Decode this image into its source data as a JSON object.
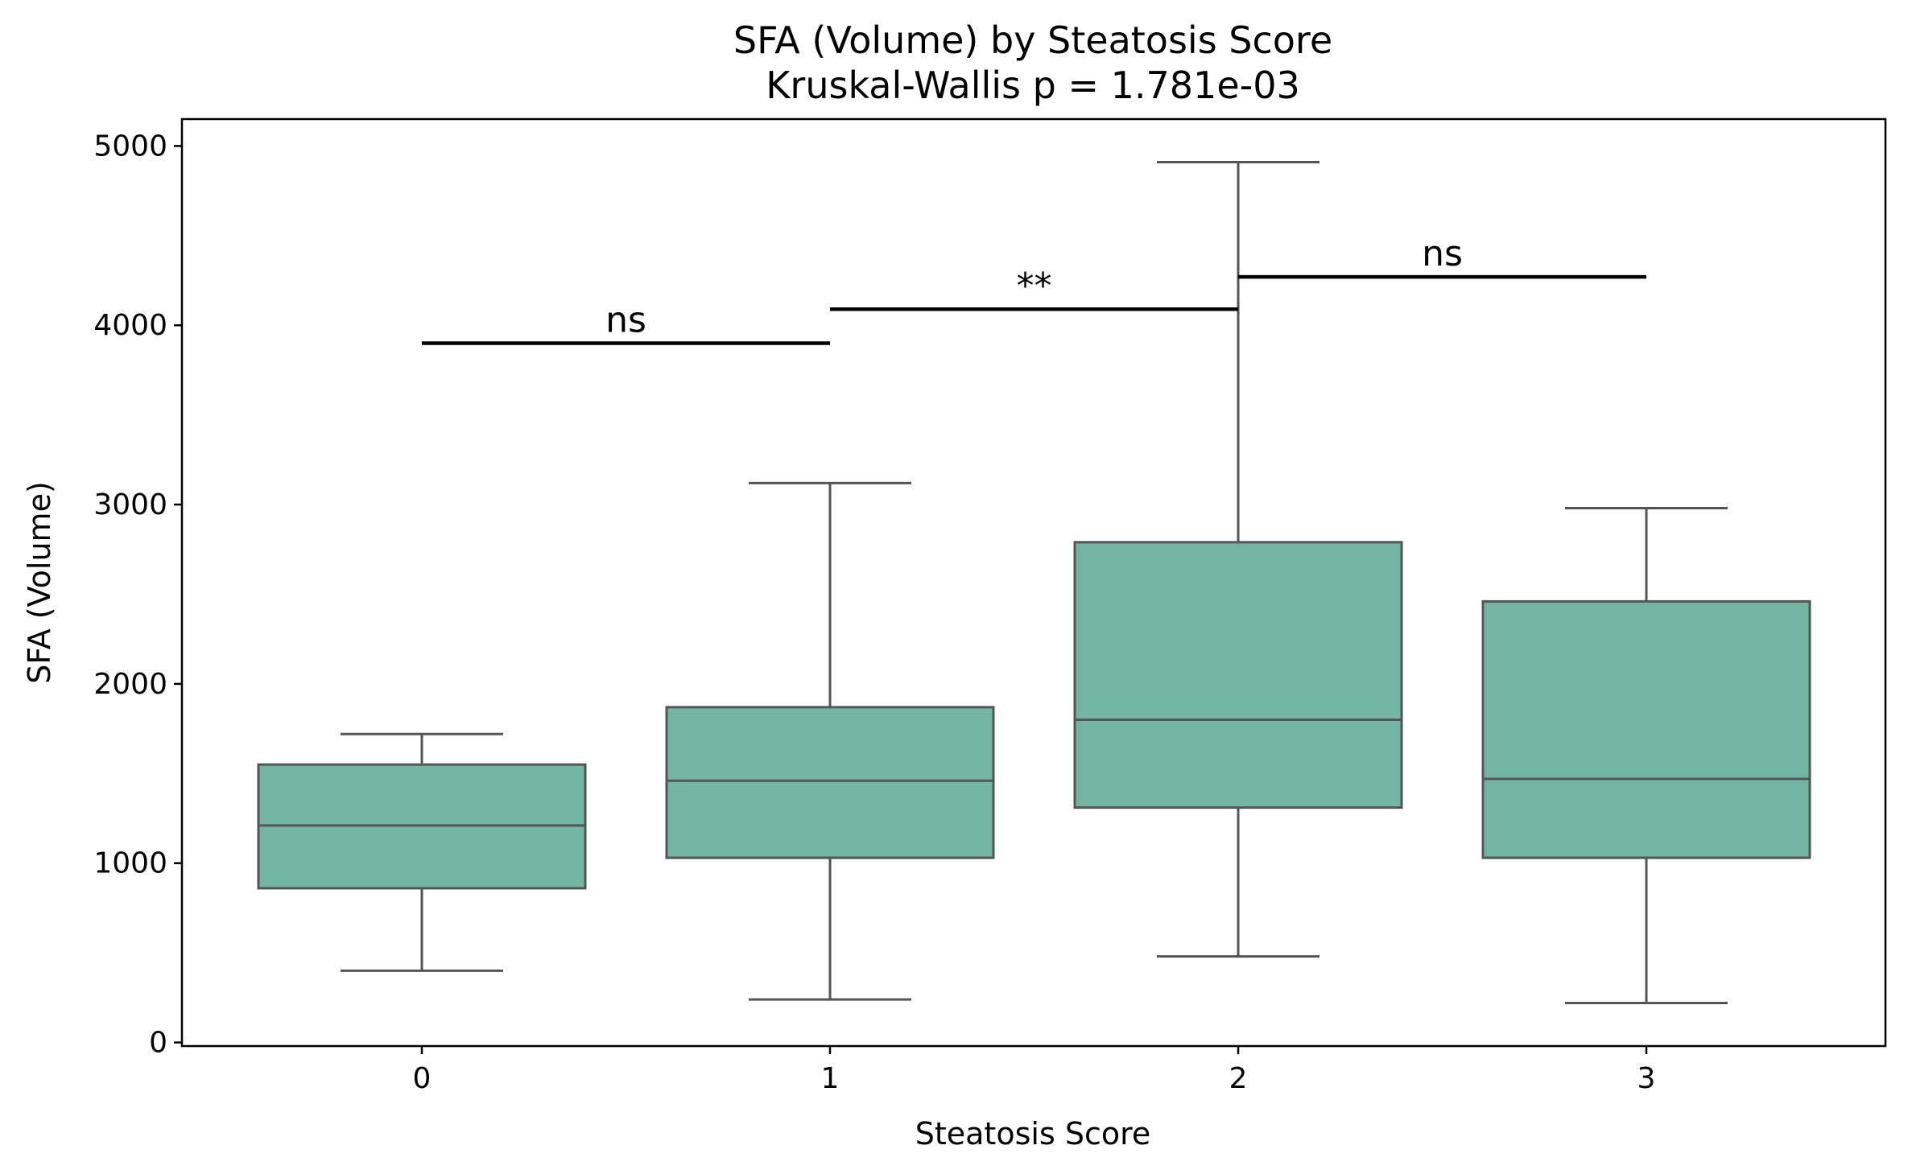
{
  "chart_data": {
    "type": "box",
    "title": "SFA (Volume) by Steatosis Score",
    "subtitle": "Kruskal-Wallis p = 1.781e-03",
    "xlabel": "Steatosis Score",
    "ylabel": "SFA (Volume)",
    "categories": [
      "0",
      "1",
      "2",
      "3"
    ],
    "ylim": [
      -20,
      5150
    ],
    "yticks": [
      0,
      1000,
      2000,
      3000,
      4000,
      5000
    ],
    "grid": false,
    "legend": "none",
    "box_color": "#73b5a2",
    "line_color": "#555555",
    "boxes": [
      {
        "category": "0",
        "whisker_low": 400,
        "q1": 860,
        "median": 1210,
        "q3": 1550,
        "whisker_high": 1720
      },
      {
        "category": "1",
        "whisker_low": 240,
        "q1": 1030,
        "median": 1460,
        "q3": 1870,
        "whisker_high": 3120
      },
      {
        "category": "2",
        "whisker_low": 480,
        "q1": 1310,
        "median": 1800,
        "q3": 2790,
        "whisker_high": 4910
      },
      {
        "category": "3",
        "whisker_low": 220,
        "q1": 1030,
        "median": 1470,
        "q3": 2460,
        "whisker_high": 2980
      }
    ],
    "annotations": [
      {
        "from": "0",
        "to": "1",
        "y": 3900,
        "label": "ns"
      },
      {
        "from": "1",
        "to": "2",
        "y": 4090,
        "label": "**"
      },
      {
        "from": "2",
        "to": "3",
        "y": 4270,
        "label": "ns"
      }
    ]
  }
}
